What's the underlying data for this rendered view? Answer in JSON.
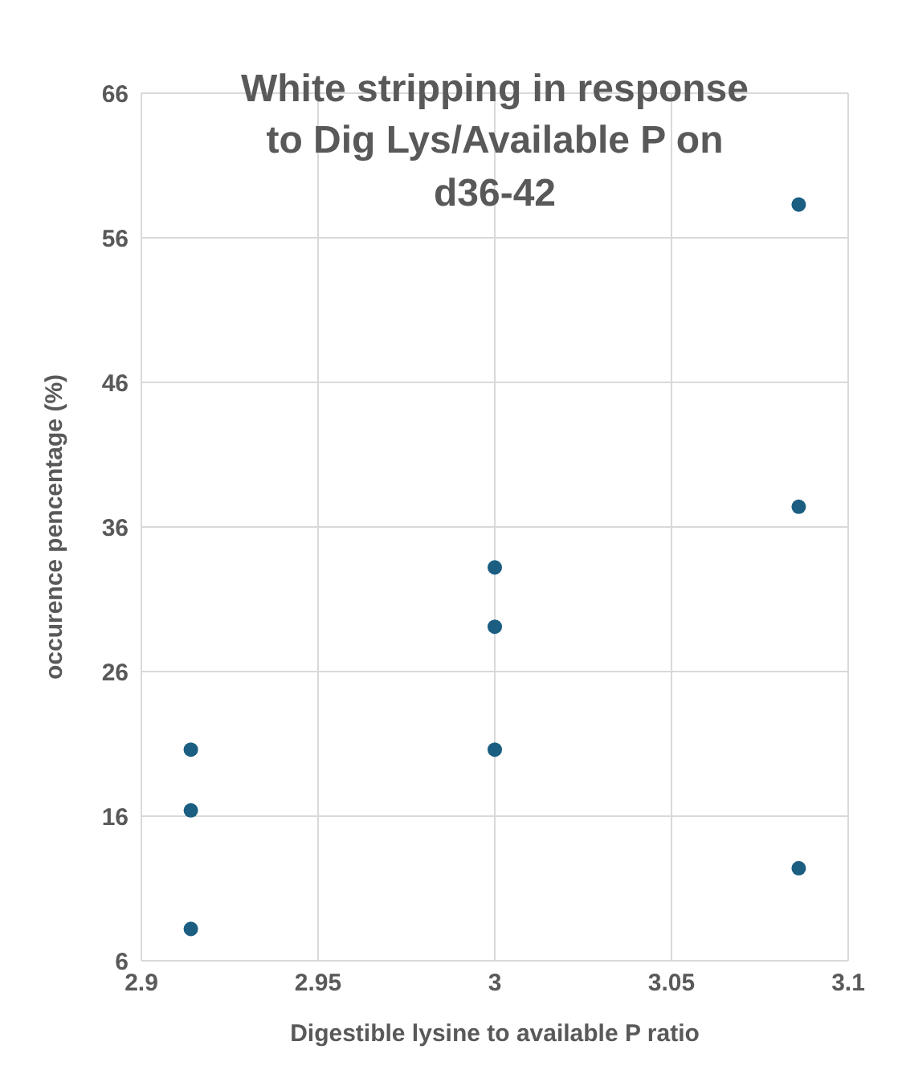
{
  "chart_data": {
    "type": "scatter",
    "title": "White stripping in response to Dig Lys/Available P on d36-42",
    "xlabel": "Digestible lysine to available P ratio",
    "ylabel": "occurence pencentage (%)",
    "series": [
      {
        "color": "#1b5e82",
        "x": [
          2.914,
          2.914,
          2.914,
          3,
          3,
          3,
          3.086,
          3.086,
          3.086
        ],
        "values": [
          20.6,
          16.4,
          8.2,
          33.2,
          29.1,
          20.6,
          58.3,
          37.4,
          12.4
        ]
      }
    ],
    "xlim": [
      2.9,
      3.1
    ],
    "xticks": [
      2.9,
      2.95,
      3,
      3.05,
      3.1
    ],
    "ylim": [
      6,
      66
    ],
    "yticks": [
      6,
      16,
      26,
      36,
      46,
      56,
      66
    ],
    "grid": true,
    "marker": "circle",
    "legend": false
  }
}
